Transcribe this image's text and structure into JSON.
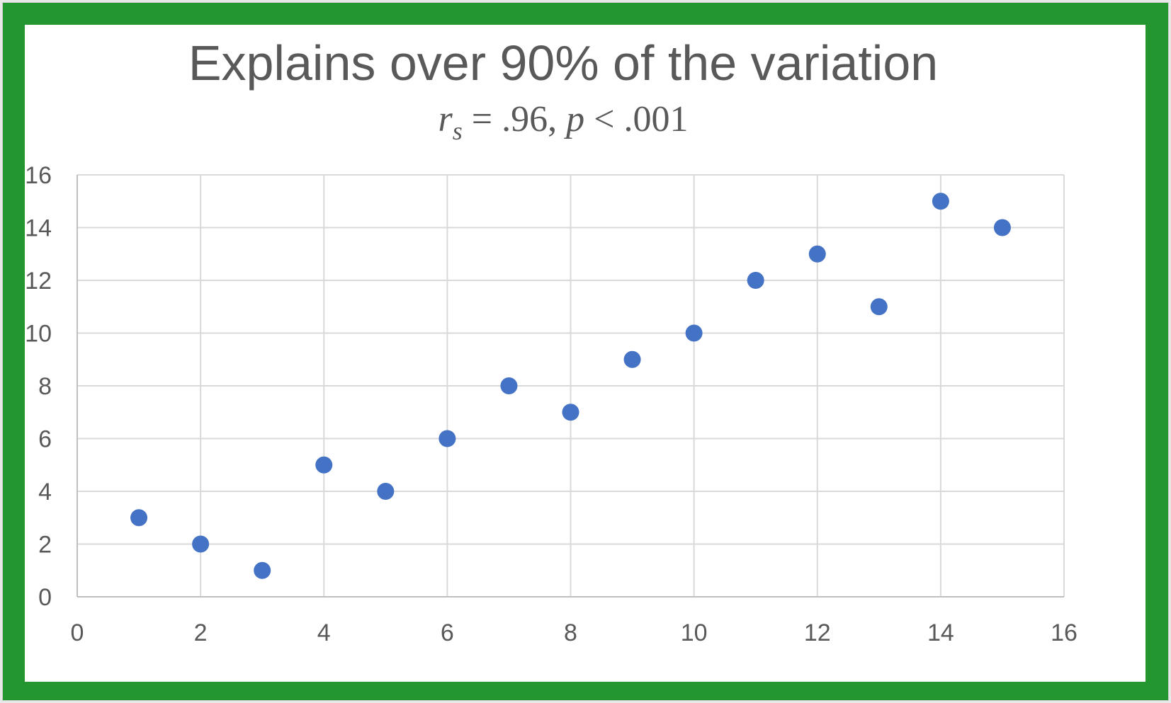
{
  "chart_data": {
    "type": "scatter",
    "title": "Explains over 90% of the variation",
    "subtitle": "r_s = .96, p < .001",
    "subtitle_parts": {
      "stat_symbol": "r",
      "stat_subscript": "s",
      "stat_rest": " = .96, ",
      "p_symbol": "p",
      "p_rest": " < .001"
    },
    "xlabel": "",
    "ylabel": "",
    "xlim": [
      0,
      16
    ],
    "ylim": [
      0,
      16
    ],
    "x_ticks": [
      0,
      2,
      4,
      6,
      8,
      10,
      12,
      14,
      16
    ],
    "y_ticks": [
      0,
      2,
      4,
      6,
      8,
      10,
      12,
      14,
      16
    ],
    "grid": true,
    "legend": "none",
    "series": [
      {
        "color": "#4472c4",
        "points": [
          {
            "x": 1,
            "y": 3
          },
          {
            "x": 2,
            "y": 2
          },
          {
            "x": 3,
            "y": 1
          },
          {
            "x": 4,
            "y": 5
          },
          {
            "x": 5,
            "y": 4
          },
          {
            "x": 6,
            "y": 6
          },
          {
            "x": 7,
            "y": 8
          },
          {
            "x": 8,
            "y": 7
          },
          {
            "x": 9,
            "y": 9
          },
          {
            "x": 10,
            "y": 10
          },
          {
            "x": 11,
            "y": 12
          },
          {
            "x": 12,
            "y": 13
          },
          {
            "x": 13,
            "y": 11
          },
          {
            "x": 14,
            "y": 15
          },
          {
            "x": 15,
            "y": 14
          }
        ]
      }
    ]
  },
  "colors": {
    "frame": "#239630",
    "background": "#ffffff",
    "point": "#4472c4",
    "text": "#595959",
    "grid": "#d9d9d9"
  }
}
